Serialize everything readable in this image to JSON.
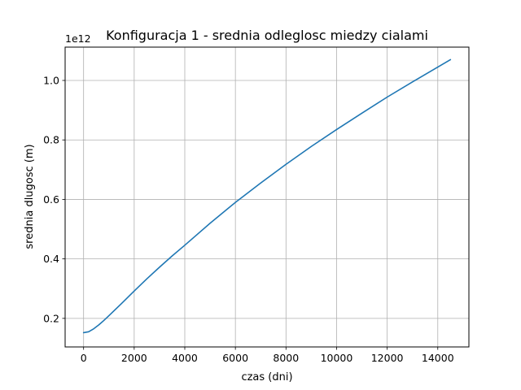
{
  "chart_data": {
    "type": "line",
    "title": "Konfiguracja 1 - srednia odleglosc miedzy cialami",
    "xlabel": "czas (dni)",
    "ylabel": "srednia dlugosc (m)",
    "y_offset_label": "1e12",
    "xlim": [
      -730,
      15230
    ],
    "ylim": [
      0.104,
      1.112
    ],
    "y_scale_factor": 1000000000000.0,
    "grid": true,
    "x_ticks": [
      {
        "value": 0,
        "label": "0"
      },
      {
        "value": 2000,
        "label": "2000"
      },
      {
        "value": 4000,
        "label": "4000"
      },
      {
        "value": 6000,
        "label": "6000"
      },
      {
        "value": 8000,
        "label": "8000"
      },
      {
        "value": 10000,
        "label": "10000"
      },
      {
        "value": 12000,
        "label": "12000"
      },
      {
        "value": 14000,
        "label": "14000"
      }
    ],
    "y_ticks": [
      {
        "value": 0.2,
        "label": "0.2"
      },
      {
        "value": 0.4,
        "label": "0.4"
      },
      {
        "value": 0.6,
        "label": "0.6"
      },
      {
        "value": 0.8,
        "label": "0.8"
      },
      {
        "value": 1.0,
        "label": "1.0"
      }
    ],
    "series": [
      {
        "color": "#1f77b4",
        "x": [
          0,
          200,
          400,
          600,
          800,
          1000,
          1500,
          2000,
          2500,
          3000,
          3500,
          4000,
          5000,
          6000,
          7000,
          8000,
          9000,
          10000,
          11000,
          12000,
          13000,
          14000,
          14500
        ],
        "y": [
          0.152,
          0.155,
          0.165,
          0.178,
          0.193,
          0.209,
          0.25,
          0.292,
          0.333,
          0.372,
          0.41,
          0.446,
          0.52,
          0.59,
          0.655,
          0.718,
          0.778,
          0.835,
          0.89,
          0.944,
          0.995,
          1.045,
          1.07
        ]
      }
    ]
  }
}
